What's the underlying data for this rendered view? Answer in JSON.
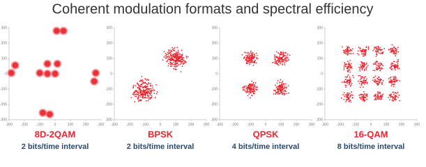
{
  "title": "Coherent modulation formats and spectral efficiency",
  "chart_data": [
    {
      "type": "scatter",
      "title": "8D-2QAM",
      "subtitle": "2 bits/time interval",
      "color": "#e8262f",
      "x": [
        10,
        55,
        -260,
        -285,
        -100,
        -50,
        -50,
        0,
        15,
        265,
        255,
        -80,
        -35
      ],
      "y": [
        280,
        280,
        55,
        5,
        5,
        65,
        0,
        0,
        65,
        5,
        -50,
        -255,
        -265
      ],
      "xlim": [
        -300,
        300
      ],
      "ylim": [
        -300,
        300
      ],
      "xticks": [
        -300,
        -200,
        -100,
        0,
        100,
        200,
        300
      ],
      "yticks": [
        -300,
        -200,
        -100,
        0,
        100,
        200,
        300
      ]
    },
    {
      "type": "scatter",
      "title": "BPSK",
      "subtitle": "2 bits/time interval",
      "color": "#e8262f",
      "x": [
        -110,
        100
      ],
      "y": [
        -110,
        100
      ],
      "xlim": [
        -300,
        300
      ],
      "ylim": [
        -300,
        300
      ],
      "xticks": [
        -300,
        -200,
        -100,
        0,
        100,
        200,
        300
      ],
      "yticks": [
        -300,
        -200,
        -100,
        0,
        100,
        200,
        300
      ]
    },
    {
      "type": "scatter",
      "title": "QPSK",
      "subtitle": "4 bits/time interval",
      "color": "#e8262f",
      "x": [
        -100,
        100,
        -100,
        100
      ],
      "y": [
        100,
        100,
        -100,
        -100
      ],
      "xlim": [
        -300,
        300
      ],
      "ylim": [
        -300,
        300
      ],
      "xticks": [
        -300,
        -200,
        -100,
        0,
        100,
        200,
        300
      ],
      "yticks": [
        -300,
        -200,
        -100,
        0,
        100,
        200,
        300
      ]
    },
    {
      "type": "scatter",
      "title": "16-QAM",
      "subtitle": "8 bits/time interval",
      "color": "#e8262f",
      "x": [
        -150,
        -50,
        50,
        150,
        -150,
        -50,
        50,
        150,
        -150,
        -50,
        50,
        150,
        -150,
        -50,
        50,
        150
      ],
      "y": [
        150,
        150,
        150,
        150,
        50,
        50,
        50,
        50,
        -50,
        -50,
        -50,
        -50,
        -150,
        -150,
        -150,
        -150
      ],
      "xlim": [
        -300,
        300
      ],
      "ylim": [
        -300,
        300
      ],
      "xticks": [
        -300,
        -200,
        -100,
        0,
        100,
        200,
        300
      ],
      "yticks": [
        -300,
        -200,
        -100,
        0,
        100,
        200,
        300
      ]
    }
  ]
}
